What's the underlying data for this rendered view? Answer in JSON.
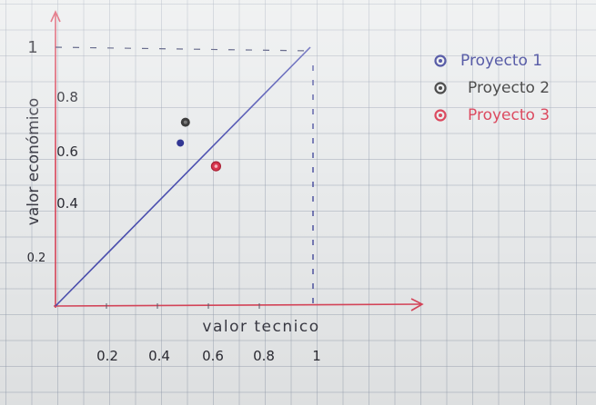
{
  "chart_data": {
    "type": "scatter",
    "title": "",
    "xlabel": "valor tecnico",
    "ylabel": "valor económico",
    "xlim": [
      0,
      1
    ],
    "ylim": [
      0,
      1
    ],
    "x_ticks": [
      "0.2",
      "0.4",
      "0.6",
      "0.8",
      "1"
    ],
    "y_ticks": [
      "0.2",
      "0.4",
      "0.6",
      "0.8",
      "1"
    ],
    "grid": false,
    "legend_position": "right",
    "reference_line": {
      "from": [
        0,
        0
      ],
      "to": [
        1,
        1
      ]
    },
    "series": [
      {
        "name": "Proyecto 1",
        "color": "#2a2f8f",
        "points": [
          {
            "x": 0.49,
            "y": 0.63
          }
        ]
      },
      {
        "name": "Proyecto 2",
        "color": "#2b2b2b",
        "points": [
          {
            "x": 0.51,
            "y": 0.71
          }
        ]
      },
      {
        "name": "Proyecto 3",
        "color": "#d8364e",
        "points": [
          {
            "x": 0.63,
            "y": 0.54
          }
        ]
      }
    ]
  }
}
